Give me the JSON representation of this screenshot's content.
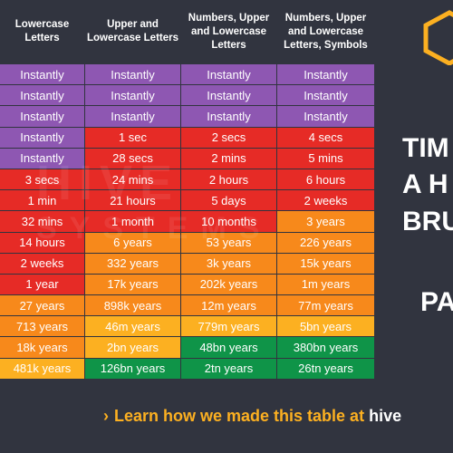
{
  "headers": [
    "Lowercase Letters",
    "Upper and Lowercase Letters",
    "Numbers, Upper and Lowercase Letters",
    "Numbers, Upper and Lowercase Letters, Symbols"
  ],
  "rows": [
    [
      "Instantly",
      "Instantly",
      "Instantly",
      "Instantly"
    ],
    [
      "Instantly",
      "Instantly",
      "Instantly",
      "Instantly"
    ],
    [
      "Instantly",
      "Instantly",
      "Instantly",
      "Instantly"
    ],
    [
      "Instantly",
      "1 sec",
      "2 secs",
      "4 secs"
    ],
    [
      "Instantly",
      "28 secs",
      "2 mins",
      "5 mins"
    ],
    [
      "3 secs",
      "24 mins",
      "2 hours",
      "6 hours"
    ],
    [
      "1 min",
      "21 hours",
      "5 days",
      "2 weeks"
    ],
    [
      "32 mins",
      "1 month",
      "10 months",
      "3 years"
    ],
    [
      "14 hours",
      "6 years",
      "53 years",
      "226 years"
    ],
    [
      "2 weeks",
      "332 years",
      "3k years",
      "15k years"
    ],
    [
      "1 year",
      "17k years",
      "202k years",
      "1m years"
    ],
    [
      "27 years",
      "898k years",
      "12m years",
      "77m years"
    ],
    [
      "713 years",
      "46m years",
      "779m years",
      "5bn years"
    ],
    [
      "18k years",
      "2bn years",
      "48bn years",
      "380bn years"
    ],
    [
      "481k years",
      "126bn years",
      "2tn years",
      "26tn years"
    ]
  ],
  "row_colors": [
    [
      "purple",
      "purple",
      "purple",
      "purple"
    ],
    [
      "purple",
      "purple",
      "purple",
      "purple"
    ],
    [
      "purple",
      "purple",
      "purple",
      "purple"
    ],
    [
      "purple",
      "red",
      "red",
      "red"
    ],
    [
      "purple",
      "red",
      "red",
      "red"
    ],
    [
      "red",
      "red",
      "red",
      "red"
    ],
    [
      "red",
      "red",
      "red",
      "red"
    ],
    [
      "red",
      "red",
      "red",
      "orange"
    ],
    [
      "red",
      "orange",
      "orange",
      "orange"
    ],
    [
      "red",
      "orange",
      "orange",
      "orange"
    ],
    [
      "red",
      "orange",
      "orange",
      "orange"
    ],
    [
      "orange",
      "orange",
      "orange",
      "orange"
    ],
    [
      "orange",
      "yellow",
      "yellow",
      "yellow"
    ],
    [
      "orange",
      "yellow",
      "green",
      "green"
    ],
    [
      "yellow",
      "green",
      "green",
      "green"
    ]
  ],
  "colors": {
    "background": "#31343f",
    "purple": "#8e57b2",
    "red": "#e62b26",
    "orange": "#f7891b",
    "yellow": "#fcb021",
    "green": "#0f9448",
    "accent": "#fcb021"
  },
  "watermark": {
    "line1": "HIVE",
    "line2": "SYSTEMS"
  },
  "title_fragments": [
    "TIM",
    "A H",
    "BRU",
    "PA"
  ],
  "footer": {
    "chevron": "›",
    "text": "Learn how we made this table at",
    "link": "hive"
  },
  "logo_icon": "hexagon-icon"
}
